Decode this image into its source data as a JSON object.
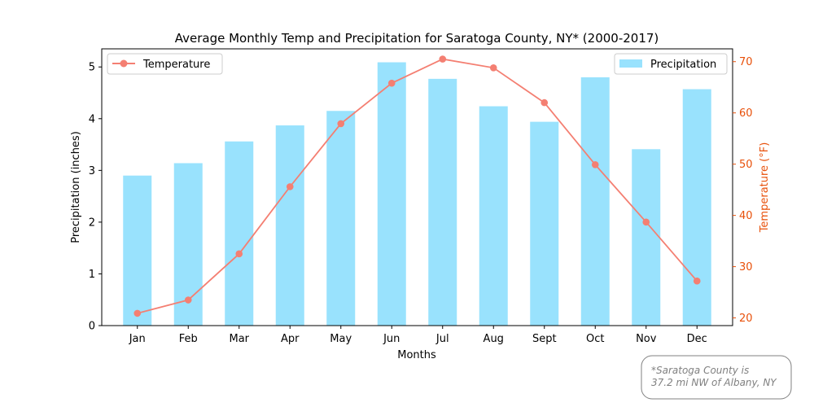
{
  "chart_data": {
    "type": "bar+line",
    "title": "Average Monthly Temp and Precipitation for Saratoga County, NY* (2000-2017)",
    "xlabel": "Months",
    "ylabel_left": "Precipitation (inches)",
    "ylabel_right": "Temperature (°F)",
    "categories": [
      "Jan",
      "Feb",
      "Mar",
      "Apr",
      "May",
      "Jun",
      "Jul",
      "Aug",
      "Sept",
      "Oct",
      "Nov",
      "Dec"
    ],
    "left_ticks": [
      0,
      1,
      2,
      3,
      4,
      5
    ],
    "right_ticks": [
      20,
      30,
      40,
      50,
      60,
      70
    ],
    "ylim_left": [
      0,
      5.35
    ],
    "ylim_right": [
      18.5,
      72.5
    ],
    "series": [
      {
        "name": "Precipitation",
        "type": "bar",
        "axis": "left",
        "color": "#99e2fd",
        "values": [
          2.9,
          3.14,
          3.56,
          3.87,
          4.15,
          5.09,
          4.77,
          4.24,
          3.94,
          4.8,
          3.41,
          4.57
        ]
      },
      {
        "name": "Temperature",
        "type": "line",
        "axis": "right",
        "color": "#f47f72",
        "values": [
          20.9,
          23.5,
          32.5,
          45.6,
          57.9,
          65.8,
          70.5,
          68.8,
          62.0,
          49.9,
          38.7,
          27.2
        ]
      }
    ],
    "legend": {
      "line_position": "top-left",
      "bar_position": "top-right"
    },
    "note": {
      "line1": "*Saratoga County is",
      "line2": "37.2 mi NW of Albany, NY"
    },
    "colors": {
      "right_axis": "#e8500a",
      "note_text": "#808080"
    },
    "grid": false
  }
}
